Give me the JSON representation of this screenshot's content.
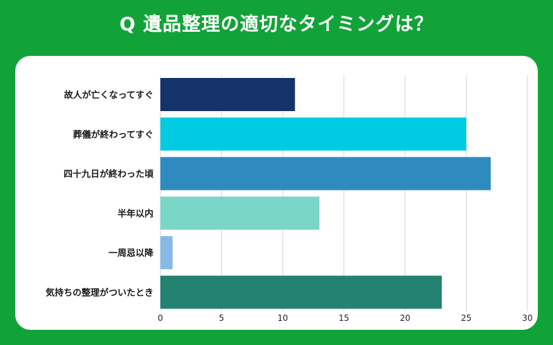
{
  "title": "Q 遺品整理の適切なタイミングは？",
  "colors": {
    "background": "#12a338",
    "card": "#ffffff",
    "grid": "#d6d6d6",
    "title_text": "#ffffff"
  },
  "chart_data": {
    "type": "bar",
    "orientation": "horizontal",
    "title": "Q 遺品整理の適切なタイミングは？",
    "xlabel": "",
    "ylabel": "",
    "xlim": [
      0,
      30
    ],
    "xticks": [
      0,
      5,
      10,
      15,
      20,
      25,
      30
    ],
    "grid": true,
    "categories": [
      "故人が亡くなってすぐ",
      "葬儀が終わってすぐ",
      "四十九日が終わった頃",
      "半年以内",
      "一周忌以降",
      "気持ちの整理がついたとき"
    ],
    "values": [
      11,
      25,
      27,
      13,
      1,
      23
    ],
    "bar_colors": [
      "#14336b",
      "#00cbe3",
      "#2f8abf",
      "#7ad7c7",
      "#87b9e7",
      "#238270"
    ]
  }
}
